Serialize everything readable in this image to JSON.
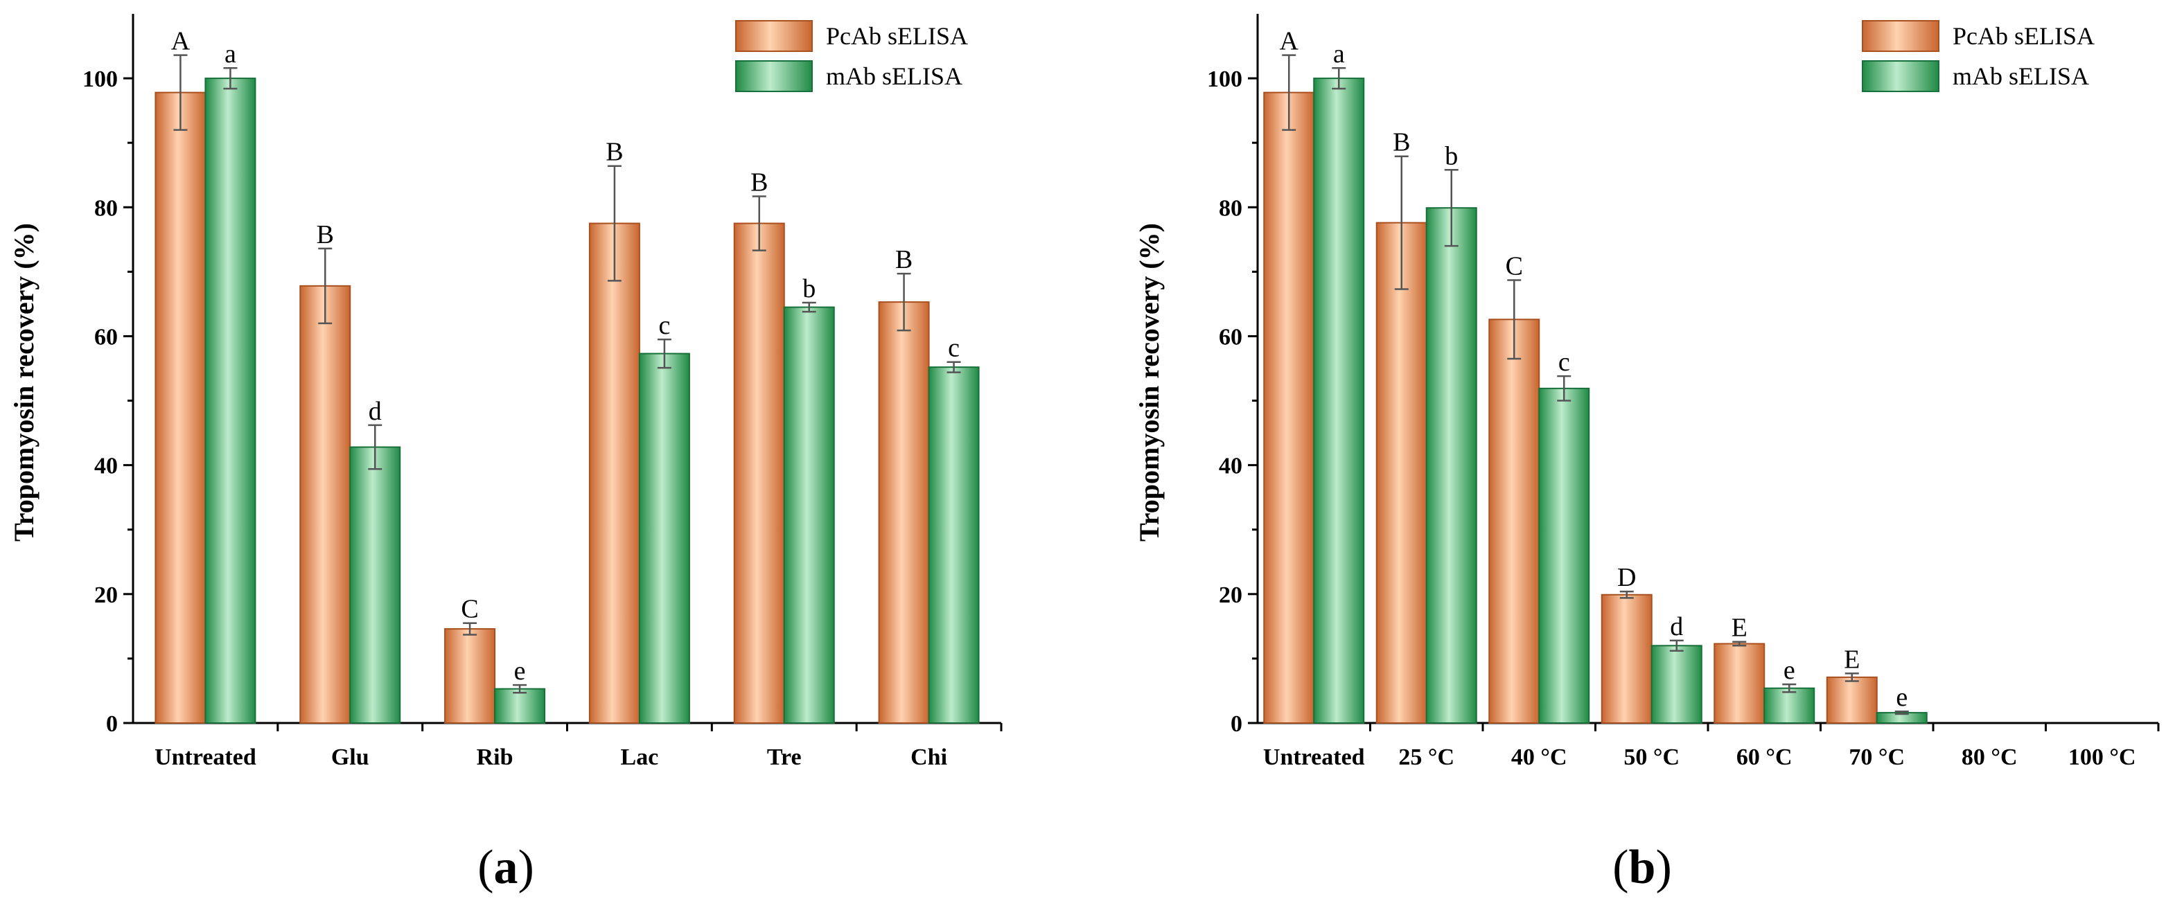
{
  "chart_data": [
    {
      "type": "bar",
      "panel": "a",
      "panel_label_open": "(",
      "panel_label_letter": "a",
      "panel_label_close": ")",
      "ylabel": "Tropomyosin recovery (%)",
      "xlabel": "",
      "ylim": [
        0,
        110
      ],
      "yticks": [
        "0",
        "20",
        "40",
        "60",
        "80",
        "100"
      ],
      "categories": [
        "Untreated",
        "Glu",
        "Rib",
        "Lac",
        "Tre",
        "Chi"
      ],
      "legend_position": "top-right",
      "series": [
        {
          "name": "PcAb sELISA",
          "color": "#E38A4F",
          "values": [
            97.8,
            67.8,
            14.6,
            77.5,
            77.5,
            65.3
          ],
          "errors": [
            5.8,
            5.8,
            0.9,
            8.9,
            4.2,
            4.4
          ],
          "letters": [
            "A",
            "B",
            "C",
            "B",
            "B",
            "B"
          ]
        },
        {
          "name": "mAb sELISA",
          "color": "#3FAA66",
          "values": [
            100.0,
            42.8,
            5.3,
            57.3,
            64.5,
            55.2
          ],
          "errors": [
            1.6,
            3.4,
            0.6,
            2.2,
            0.7,
            0.8
          ],
          "letters": [
            "a",
            "d",
            "e",
            "c",
            "b",
            "c"
          ]
        }
      ]
    },
    {
      "type": "bar",
      "panel": "b",
      "panel_label_open": "(",
      "panel_label_letter": "b",
      "panel_label_close": ")",
      "ylabel": "Tropomyosin recovery (%)",
      "xlabel": "",
      "ylim": [
        0,
        110
      ],
      "yticks": [
        "0",
        "20",
        "40",
        "60",
        "80",
        "100"
      ],
      "categories": [
        "Untreated",
        "25 °C",
        "40 °C",
        "50 °C",
        "60 °C",
        "70 °C",
        "80 °C",
        "100 °C"
      ],
      "legend_position": "top-right",
      "series": [
        {
          "name": "PcAb sELISA",
          "color": "#E38A4F",
          "values": [
            97.8,
            77.6,
            62.6,
            19.9,
            12.3,
            7.1,
            0,
            0
          ],
          "errors": [
            5.8,
            10.3,
            6.1,
            0.5,
            0.3,
            0.6,
            0,
            0
          ],
          "letters": [
            "A",
            "B",
            "C",
            "D",
            "E",
            "E",
            "",
            ""
          ]
        },
        {
          "name": "mAb sELISA",
          "color": "#3FAA66",
          "values": [
            100.0,
            79.9,
            51.9,
            12.0,
            5.4,
            1.6,
            0,
            0
          ],
          "errors": [
            1.6,
            5.9,
            1.9,
            0.8,
            0.6,
            0.2,
            0,
            0
          ],
          "letters": [
            "a",
            "b",
            "c",
            "d",
            "e",
            "e",
            "",
            ""
          ]
        }
      ]
    }
  ]
}
